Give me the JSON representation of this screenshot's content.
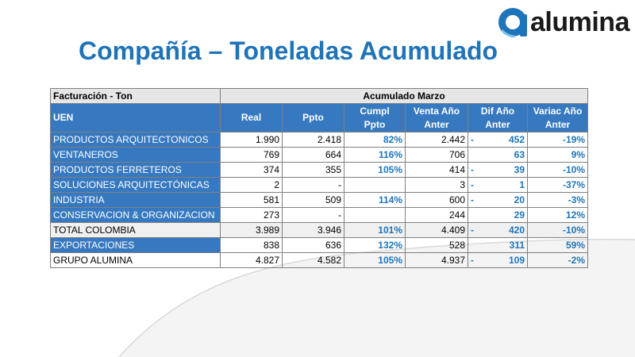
{
  "logo": {
    "text": "alumina"
  },
  "title": "Compañía – Toneladas Acumulado",
  "table": {
    "corner_label": "Facturación - Ton",
    "group_header": "Acumulado Marzo",
    "row_header": "UEN",
    "columns": [
      [
        "Real"
      ],
      [
        "Ppto"
      ],
      [
        "Cumpl",
        "Ppto"
      ],
      [
        "Venta Año",
        "Anter"
      ],
      [
        "Dif Año",
        "Anter"
      ],
      [
        "Variac Año",
        "Anter"
      ]
    ],
    "rows": [
      {
        "uen": "PRODUCTOS ARQUITECTONICOS",
        "real": "1.990",
        "ppto": "2.418",
        "cumpl": "82%",
        "venta": "2.442",
        "dif_sign": "-",
        "dif": "452",
        "variac": "-19%"
      },
      {
        "uen": "VENTANEROS",
        "real": "769",
        "ppto": "664",
        "cumpl": "116%",
        "venta": "706",
        "dif_sign": "",
        "dif": "63",
        "variac": "9%"
      },
      {
        "uen": "PRODUCTOS FERRETEROS",
        "real": "374",
        "ppto": "355",
        "cumpl": "105%",
        "venta": "414",
        "dif_sign": "-",
        "dif": "39",
        "variac": "-10%"
      },
      {
        "uen": "SOLUCIONES ARQUITECTÓNICAS",
        "real": "2",
        "ppto": "-",
        "cumpl": "",
        "venta": "3",
        "dif_sign": "-",
        "dif": "1",
        "variac": "-37%"
      },
      {
        "uen": "INDUSTRIA",
        "real": "581",
        "ppto": "509",
        "cumpl": "114%",
        "venta": "600",
        "dif_sign": "-",
        "dif": "20",
        "variac": "-3%"
      },
      {
        "uen": "CONSERVACION & ORGANIZACION",
        "real": "273",
        "ppto": "-",
        "cumpl": "",
        "venta": "244",
        "dif_sign": "",
        "dif": "29",
        "variac": "12%"
      },
      {
        "uen": "TOTAL COLOMBIA",
        "real": "3.989",
        "ppto": "3.946",
        "cumpl": "101%",
        "venta": "4.409",
        "dif_sign": "-",
        "dif": "420",
        "variac": "-10%"
      },
      {
        "uen": "EXPORTACIONES",
        "real": "838",
        "ppto": "636",
        "cumpl": "132%",
        "venta": "528",
        "dif_sign": "",
        "dif": "311",
        "variac": "59%"
      },
      {
        "uen": "GRUPO ALUMINA",
        "real": "4.827",
        "ppto": "4.582",
        "cumpl": "105%",
        "venta": "4.937",
        "dif_sign": "-",
        "dif": "109",
        "variac": "-2%"
      }
    ]
  },
  "colors": {
    "brand_blue": "#1f74b9",
    "header_blue": "#3679c1",
    "header_grey": "#e6e6e6"
  }
}
